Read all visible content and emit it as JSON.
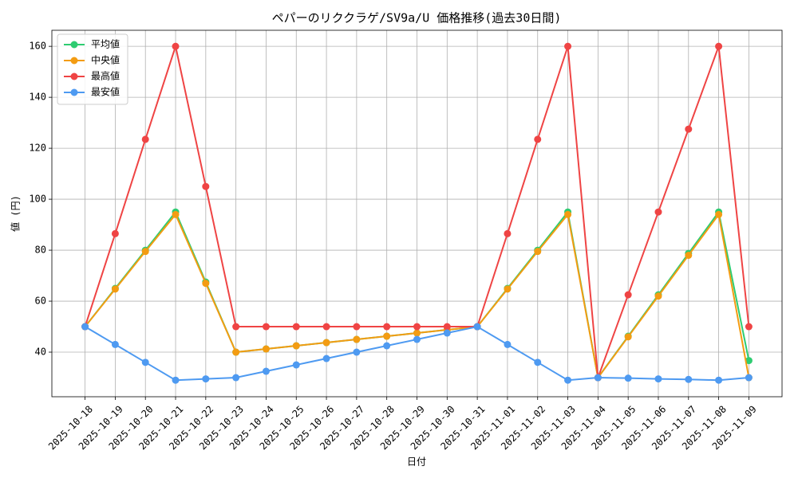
{
  "chart_data": {
    "type": "line",
    "title": "ペパーのリククラゲ/SV9a/U 価格推移(過去30日間)",
    "xlabel": "日付",
    "ylabel": "値 (円)",
    "categories": [
      "2025-10-18",
      "2025-10-19",
      "2025-10-20",
      "2025-10-21",
      "2025-10-22",
      "2025-10-23",
      "2025-10-24",
      "2025-10-25",
      "2025-10-26",
      "2025-10-27",
      "2025-10-28",
      "2025-10-29",
      "2025-10-30",
      "2025-10-31",
      "2025-11-01",
      "2025-11-02",
      "2025-11-03",
      "2025-11-04",
      "2025-11-05",
      "2025-11-06",
      "2025-11-07",
      "2025-11-08",
      "2025-11-09"
    ],
    "series": [
      {
        "name": "平均値",
        "color": "#2ecc71",
        "values": [
          50,
          65,
          80,
          95,
          67.5,
          40,
          41.25,
          42.5,
          43.75,
          45,
          46.25,
          47.5,
          48.75,
          50,
          65,
          80,
          95,
          30,
          46.25,
          62.5,
          78.75,
          95,
          36.7
        ]
      },
      {
        "name": "中央値",
        "color": "#f39c12",
        "values": [
          50,
          64.75,
          79.5,
          94,
          67,
          40,
          41.25,
          42.5,
          43.75,
          45,
          46.25,
          47.5,
          48.75,
          50,
          64.75,
          79.5,
          94,
          30,
          46,
          62,
          78,
          94,
          30
        ]
      },
      {
        "name": "最高値",
        "color": "#ef4444",
        "values": [
          50,
          86.5,
          123.5,
          160,
          105,
          50,
          50,
          50,
          50,
          50,
          50,
          50,
          50,
          50,
          86.5,
          123.5,
          160,
          30,
          62.5,
          95,
          127.5,
          160,
          50
        ]
      },
      {
        "name": "最安値",
        "color": "#4e9af1",
        "values": [
          50,
          43,
          36,
          29,
          29.5,
          30,
          32.5,
          35,
          37.5,
          40,
          42.5,
          45,
          47.5,
          50,
          43,
          36,
          29,
          30,
          29.8,
          29.5,
          29.3,
          29,
          30
        ]
      }
    ],
    "ylim": [
      22.5,
      166.3
    ],
    "yticks": [
      40,
      60,
      80,
      100,
      120,
      140,
      160
    ],
    "grid": true,
    "legend": "upper-left"
  }
}
